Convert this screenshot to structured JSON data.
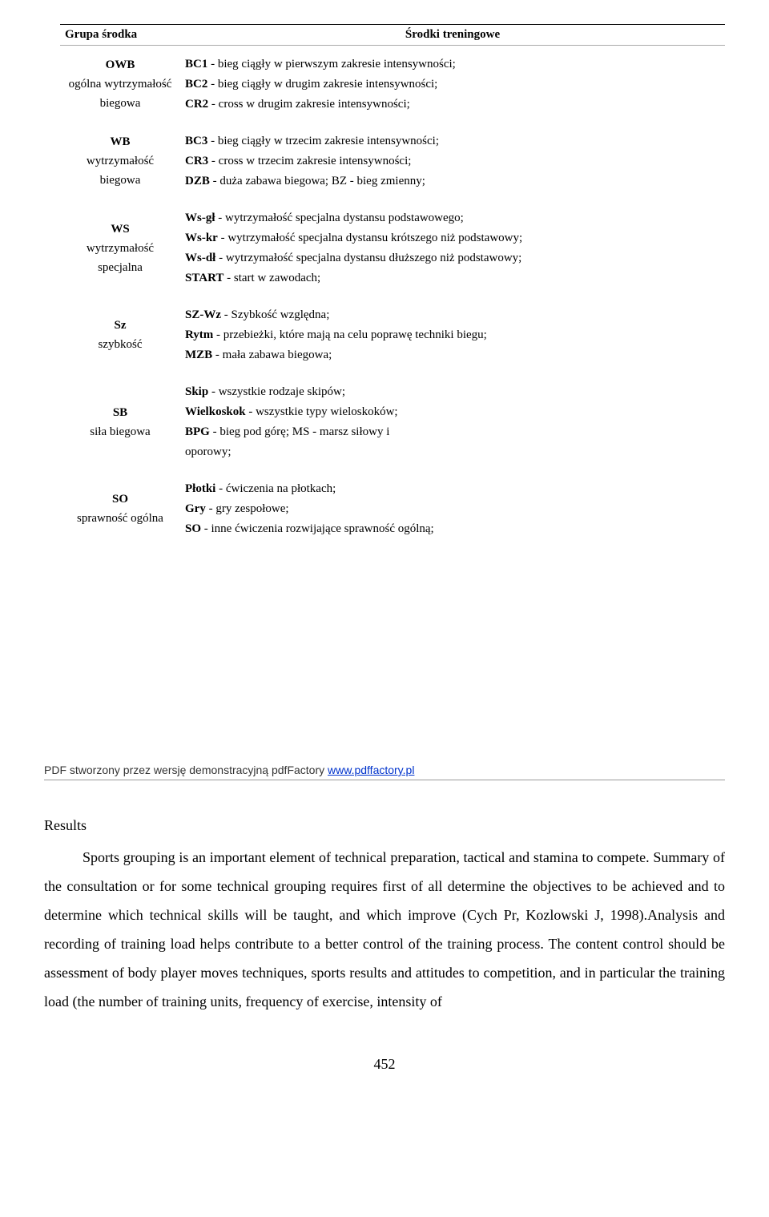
{
  "table": {
    "headers": {
      "col1": "Grupa środka",
      "col2": "Środki treningowe"
    },
    "rows": [
      {
        "abbr": "OWB",
        "label": "ogólna wytrzymałość biegowa",
        "lines": [
          "<b>BC1</b> - bieg ciągły w pierwszym zakresie intensywności;",
          "<b>BC2</b> - bieg ciągły w drugim zakresie intensywności;",
          "<b>CR2</b> - cross w drugim zakresie intensywności;"
        ]
      },
      {
        "abbr": "WB",
        "label": "wytrzymałość biegowa",
        "lines": [
          "<b>BC3</b> - bieg ciągły w trzecim zakresie intensywności;",
          "<b>CR3</b> - cross w trzecim zakresie intensywności;",
          "<b>DZB</b> - duża zabawa biegowa; BZ - bieg zmienny;"
        ]
      },
      {
        "abbr": "WS",
        "label": "wytrzymałość specjalna",
        "lines": [
          "<b>Ws-gł</b> - wytrzymałość specjalna dystansu podstawowego;",
          "<b>Ws-kr</b> - wytrzymałość specjalna dystansu krótszego niż podstawowy;",
          "<b>Ws-dł</b> - wytrzymałość specjalna dystansu dłuższego niż podstawowy;",
          "<b>START</b> - start w zawodach;"
        ]
      },
      {
        "abbr": "Sz",
        "label": "szybkość",
        "lines": [
          "<b>SZ-Wz</b> - Szybkość względna;",
          "<b>Rytm</b> - przebieżki, które mają na celu poprawę techniki biegu;",
          "<b>MZB</b> - mała zabawa biegowa;"
        ]
      },
      {
        "abbr": "SB",
        "label": "siła biegowa",
        "lines": [
          "<b>Skip</b> - wszystkie rodzaje skipów;",
          "<b>Wielkoskok</b> - wszystkie typy wieloskoków;",
          "<b>BPG</b> - bieg pod górę; MS - marsz siłowy i",
          "oporowy;"
        ]
      },
      {
        "abbr": "SO",
        "label": "sprawność ogólna",
        "lines": [
          "<b>Płotki</b> - ćwiczenia na płotkach;",
          "<b>Gry</b> - gry zespołowe;",
          "<b>SO</b> - inne ćwiczenia rozwijające sprawność ogólną;"
        ]
      }
    ]
  },
  "footer": {
    "prefix": "PDF stworzony przez wersję demonstracyjną pdfFactory ",
    "link_text": "www.pdffactory.pl"
  },
  "body": {
    "heading": "Results",
    "paragraph": "Sports grouping is an important element of technical preparation, tactical and stamina to compete. Summary of the consultation or for some technical grouping requires first of all determine the objectives to be achieved and to determine which technical skills will be taught, and which improve (Cych Pr, Kozlowski J, 1998).Analysis and recording of training load helps contribute to a better control of the training process. The content control should be assessment of body player moves techniques, sports results and attitudes to competition, and in particular the training load (the number of training units, frequency of exercise, intensity of"
  },
  "page_number": "452"
}
